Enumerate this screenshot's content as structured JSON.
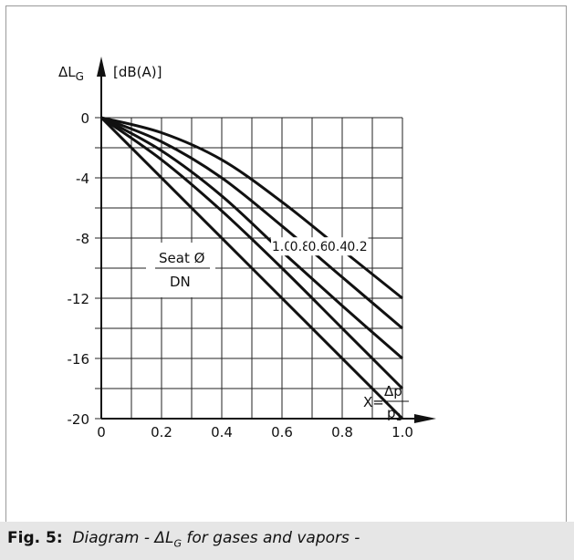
{
  "chart_data": {
    "type": "line",
    "y_label": "ΔL",
    "y_label_sub": "G",
    "y_unit": "[dB(A)]",
    "x_label_prefix": "X=",
    "x_label_numerator": "Δp",
    "x_label_denominator": "p",
    "x_label_denominator_sub": "1",
    "xlim": [
      0,
      1.0
    ],
    "ylim": [
      -20,
      0
    ],
    "grid": true,
    "x_ticks": [
      "0",
      "0.2",
      "0.4",
      "0.6",
      "0.8",
      "1.0"
    ],
    "x_tick_values": [
      0,
      0.2,
      0.4,
      0.6,
      0.8,
      1.0
    ],
    "y_ticks": [
      "0",
      "-4",
      "-8",
      "-12",
      "-16",
      "-20"
    ],
    "y_tick_values": [
      0,
      -4,
      -8,
      -12,
      -16,
      -20
    ],
    "param_label_numerator": "Seat Ø",
    "param_label_denominator": "DN",
    "series": [
      {
        "name": "1.0",
        "x": [
          0,
          0.5,
          1.0
        ],
        "y": [
          0,
          -10,
          -20
        ],
        "label_x": 0.6,
        "label_y": -8.8
      },
      {
        "name": "0.8",
        "x": [
          0,
          0.2,
          0.4,
          0.6,
          0.8,
          1.0
        ],
        "y": [
          0,
          -2.8,
          -6.2,
          -10.0,
          -14.0,
          -18.0
        ],
        "label_x": 0.66,
        "label_y": -8.8
      },
      {
        "name": "0.6",
        "x": [
          0,
          0.2,
          0.4,
          0.6,
          0.8,
          1.0
        ],
        "y": [
          0,
          -2.2,
          -5.2,
          -8.9,
          -12.5,
          -16.0
        ],
        "label_x": 0.72,
        "label_y": -8.8
      },
      {
        "name": "0.4",
        "x": [
          0,
          0.2,
          0.4,
          0.6,
          0.8,
          1.0
        ],
        "y": [
          0,
          -1.6,
          -4.0,
          -7.2,
          -10.6,
          -14.0
        ],
        "label_x": 0.785,
        "label_y": -8.8
      },
      {
        "name": "0.2",
        "x": [
          0,
          0.2,
          0.4,
          0.6,
          0.8,
          1.0
        ],
        "y": [
          0,
          -1.0,
          -2.8,
          -5.6,
          -8.8,
          -12.0
        ],
        "label_x": 0.85,
        "label_y": -8.8
      }
    ]
  },
  "caption": {
    "fig_label": "Fig. 5:",
    "text_before": "Diagram - ΔL",
    "text_sub": "G",
    "text_after": " for gases and vapors -"
  }
}
